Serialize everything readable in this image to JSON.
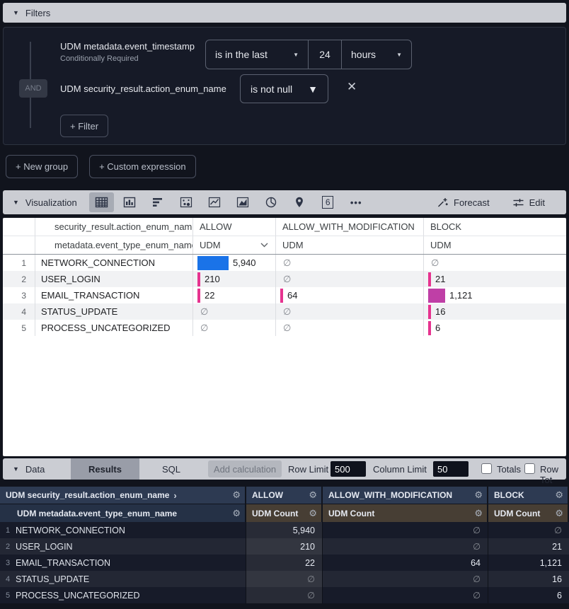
{
  "filters": {
    "title": "Filters",
    "and_label": "AND",
    "timestamp_filter": {
      "field": "UDM metadata.event_timestamp",
      "note": "Conditionally Required",
      "operator": "is in the last",
      "value": "24",
      "unit": "hours"
    },
    "action_filter": {
      "field": "UDM security_result.action_enum_name",
      "operator": "is not null"
    },
    "add_filter": "+ Filter",
    "new_group": "+ New group",
    "custom_expression": "+ Custom expression"
  },
  "viz_bar": {
    "title": "Visualization",
    "forecast": "Forecast",
    "edit": "Edit",
    "icons": [
      "table",
      "column-chart",
      "bar-chart",
      "scatter-plot",
      "line-chart",
      "area-chart",
      "pie-chart",
      "map",
      "single-value",
      "more-options"
    ],
    "selected_icon": "table",
    "single_value_glyph": "6",
    "more_glyph": "•••"
  },
  "viz_table": {
    "pivot_header": "security_result.action_enum_name",
    "pivot_chevron": "›",
    "dim_header": "metadata.event_type_enum_name",
    "pivot_values": [
      "ALLOW",
      "ALLOW_WITH_MODIFICATION",
      "BLOCK"
    ],
    "measure_row": [
      "UDM",
      "UDM",
      "UDM"
    ],
    "rows": [
      {
        "num": "1",
        "name": "NETWORK_CONNECTION",
        "cells": [
          {
            "text": "5,940",
            "bar": 44,
            "color": "#1a73e8"
          },
          {
            "text": "∅"
          },
          {
            "text": "∅"
          }
        ]
      },
      {
        "num": "2",
        "name": "USER_LOGIN",
        "cells": [
          {
            "text": "210",
            "bar": 4,
            "color": "#e6338f"
          },
          {
            "text": "∅"
          },
          {
            "text": "21",
            "bar": 4,
            "color": "#e6338f"
          }
        ]
      },
      {
        "num": "3",
        "name": "EMAIL_TRANSACTION",
        "cells": [
          {
            "text": "22",
            "bar": 4,
            "color": "#e6338f"
          },
          {
            "text": "64",
            "bar": 4,
            "color": "#e6338f"
          },
          {
            "text": "1,121",
            "bar": 24,
            "color": "#bf3fa6"
          }
        ]
      },
      {
        "num": "4",
        "name": "STATUS_UPDATE",
        "cells": [
          {
            "text": "∅"
          },
          {
            "text": "∅"
          },
          {
            "text": "16",
            "bar": 4,
            "color": "#e6338f"
          }
        ]
      },
      {
        "num": "5",
        "name": "PROCESS_UNCATEGORIZED",
        "cells": [
          {
            "text": "∅"
          },
          {
            "text": "∅"
          },
          {
            "text": "6",
            "bar": 4,
            "color": "#e6338f"
          }
        ]
      }
    ]
  },
  "data_bar": {
    "title": "Data",
    "tabs": [
      "Results",
      "SQL"
    ],
    "active_tab": "Results",
    "add_calculation": "Add calculation",
    "row_limit_label": "Row Limit",
    "row_limit_value": "500",
    "column_limit_label": "Column Limit",
    "column_limit_value": "50",
    "totals_label": "Totals",
    "row_totals_label": "Row Tot"
  },
  "results_table": {
    "pivot_header": "UDM security_result.action_enum_name",
    "pivot_chevron": "›",
    "dim_header": "UDM metadata.event_type_enum_name",
    "col_headers": [
      "ALLOW",
      "ALLOW_WITH_MODIFICATION",
      "BLOCK"
    ],
    "measure_headers": [
      "UDM Count",
      "UDM Count",
      "UDM Count"
    ],
    "sort_arrow": "↓",
    "gear_glyph": "⚙",
    "rows": [
      {
        "num": "1",
        "name": "NETWORK_CONNECTION",
        "values": [
          "5,940",
          "∅",
          "∅"
        ]
      },
      {
        "num": "2",
        "name": "USER_LOGIN",
        "values": [
          "210",
          "∅",
          "21"
        ]
      },
      {
        "num": "3",
        "name": "EMAIL_TRANSACTION",
        "values": [
          "22",
          "64",
          "1,121"
        ]
      },
      {
        "num": "4",
        "name": "STATUS_UPDATE",
        "values": [
          "∅",
          "∅",
          "16"
        ]
      },
      {
        "num": "5",
        "name": "PROCESS_UNCATEGORIZED",
        "values": [
          "∅",
          "∅",
          "6"
        ]
      }
    ]
  },
  "colors": {
    "accent_blue": "#1a73e8",
    "magenta": "#bf3fa6",
    "pink": "#e6338f",
    "header_navy": "#2d3a52",
    "measure_brown": "#473e34"
  }
}
